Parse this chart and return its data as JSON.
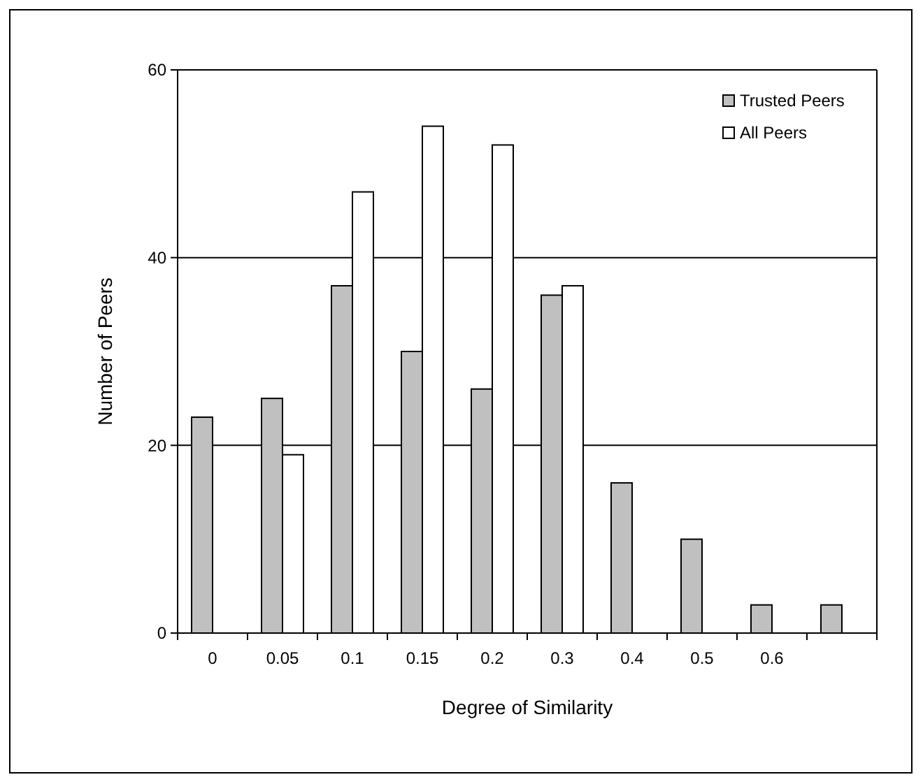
{
  "chart_data": {
    "type": "bar",
    "xlabel": "Degree of Similarity",
    "ylabel": "Number of Peers",
    "categories": [
      "0",
      "0.05",
      "0.1",
      "0.15",
      "0.2",
      "0.3",
      "0.4",
      "0.5",
      "0.6",
      null
    ],
    "series": [
      {
        "name": "Trusted Peers",
        "color": "#c0c0c0",
        "values": [
          23,
          25,
          37,
          30,
          26,
          36,
          16,
          10,
          3,
          3
        ]
      },
      {
        "name": "All Peers",
        "color": "#ffffff",
        "values": [
          null,
          19,
          47,
          54,
          52,
          37,
          null,
          null,
          null,
          null
        ]
      }
    ],
    "ylim": [
      0,
      60
    ],
    "yticks": [
      0,
      20,
      40,
      60
    ],
    "grid": "y",
    "legend": "top right"
  }
}
